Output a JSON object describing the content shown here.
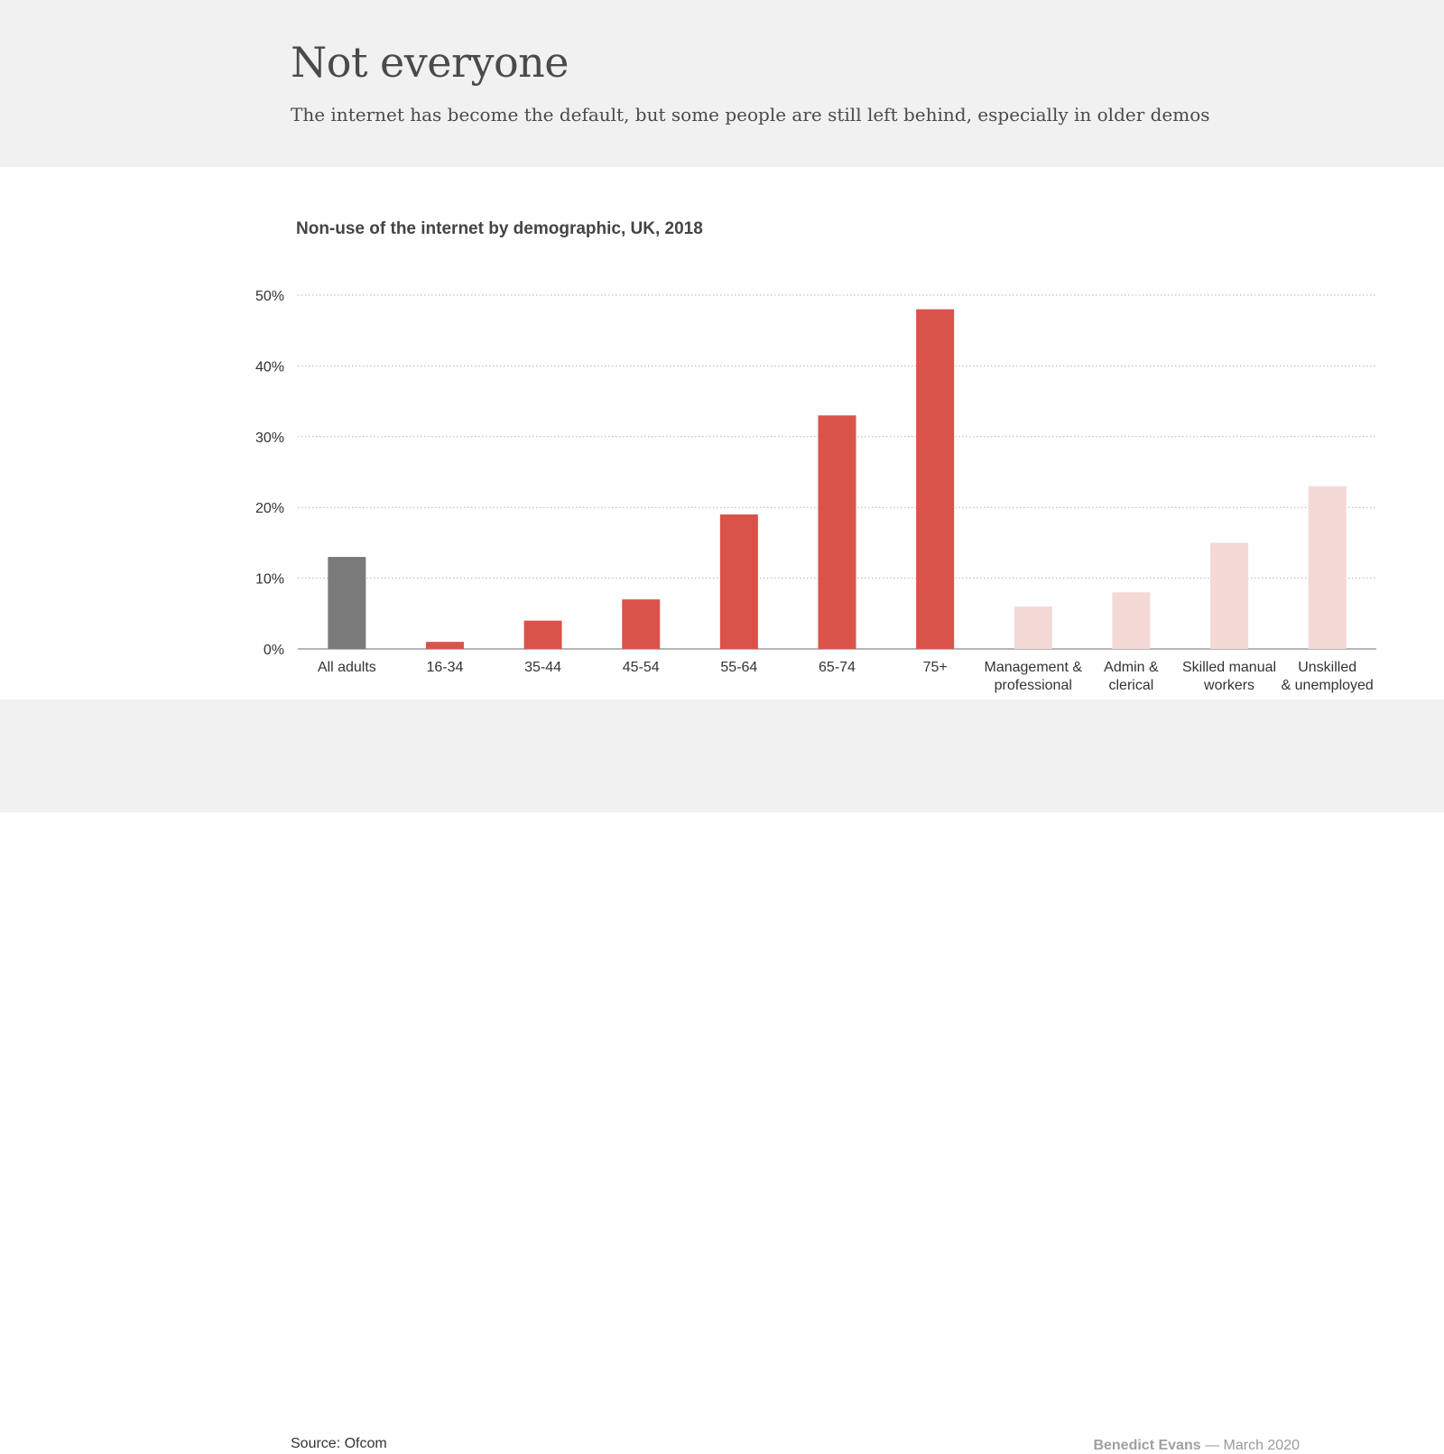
{
  "header": {
    "title": "Not everyone",
    "subtitle": "The internet has become the default, but some people are still left behind, especially in older demos"
  },
  "footer": {
    "source": "Source: Ofcom",
    "author": "Benedict Evans",
    "date": "— March 2020"
  },
  "colors": {
    "background": "#f1f1f1",
    "all_adults": "#7a7a7a",
    "age": "#d9534a",
    "social_grade": "#f4d9d6",
    "grid": "#b5b5b5",
    "axis": "#8a8a8a",
    "text": "#333333"
  },
  "chart_data": {
    "type": "bar",
    "title": "Non-use of the internet by demographic, UK, 2018",
    "categories": [
      [
        "All adults"
      ],
      [
        "16-34"
      ],
      [
        "35-44"
      ],
      [
        "45-54"
      ],
      [
        "55-64"
      ],
      [
        "65-74"
      ],
      [
        "75+"
      ],
      [
        "Management &",
        "professional"
      ],
      [
        "Admin &",
        "clerical"
      ],
      [
        "Skilled manual",
        "workers"
      ],
      [
        "Unskilled",
        "& unemployed"
      ]
    ],
    "values": [
      13,
      1,
      4,
      7,
      19,
      33,
      48,
      6,
      8,
      15,
      23
    ],
    "groups": [
      "all",
      "age",
      "age",
      "age",
      "age",
      "age",
      "age",
      "grade",
      "grade",
      "grade",
      "grade"
    ],
    "yticks": [
      "0%",
      "10%",
      "20%",
      "30%",
      "40%",
      "50%"
    ],
    "ylim": [
      0,
      50
    ],
    "xlabel": "",
    "ylabel": "",
    "grid": true,
    "grid_style": "dotted"
  }
}
